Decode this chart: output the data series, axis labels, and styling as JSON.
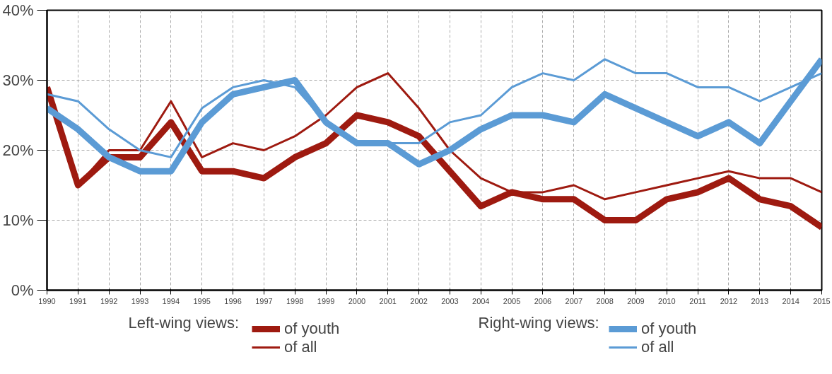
{
  "chart_data": {
    "type": "line",
    "x": [
      1990,
      1991,
      1992,
      1993,
      1994,
      1995,
      1996,
      1997,
      1998,
      1999,
      2000,
      2001,
      2002,
      2003,
      2004,
      2005,
      2006,
      2007,
      2008,
      2009,
      2010,
      2011,
      2012,
      2013,
      2014,
      2015
    ],
    "series": [
      {
        "name": "of youth",
        "color": "#9e1a10",
        "values": [
          29,
          15,
          19,
          19,
          24,
          17,
          17,
          16,
          19,
          21,
          25,
          24,
          22,
          17,
          12,
          14,
          13,
          13,
          10,
          10,
          13,
          14,
          16,
          13,
          12,
          9
        ]
      },
      {
        "name": "of all",
        "color": "#9e1a10",
        "values": [
          29,
          15,
          20,
          20,
          27,
          19,
          21,
          20,
          22,
          25,
          29,
          31,
          26,
          20,
          16,
          14,
          14,
          15,
          13,
          14,
          15,
          16,
          17,
          16,
          16,
          14
        ]
      },
      {
        "name": "of youth",
        "color": "#5b9bd5",
        "values": [
          26,
          23,
          19,
          17,
          17,
          24,
          28,
          29,
          30,
          24,
          21,
          21,
          18,
          20,
          23,
          25,
          25,
          24,
          28,
          26,
          24,
          22,
          24,
          21,
          27,
          33
        ]
      },
      {
        "name": "of all",
        "color": "#5b9bd5",
        "values": [
          28,
          27,
          23,
          20,
          19,
          26,
          29,
          30,
          29,
          24,
          21,
          21,
          21,
          24,
          25,
          29,
          31,
          30,
          33,
          31,
          31,
          29,
          29,
          27,
          29,
          31
        ]
      }
    ],
    "annotations": [
      "Left-wing views:",
      "Right-wing views:"
    ],
    "xlim": [
      1990,
      2015
    ],
    "xticks": [
      1990,
      1991,
      1992,
      1993,
      1994,
      1995,
      1996,
      1997,
      1998,
      1999,
      2000,
      2001,
      2002,
      2003,
      2004,
      2005,
      2006,
      2007,
      2008,
      2009,
      2010,
      2011,
      2012,
      2013,
      2014,
      2015
    ],
    "ylim": [
      0,
      40
    ],
    "yticks": [
      {
        "value": 0,
        "label": "0%"
      },
      {
        "value": 10,
        "label": "10%"
      },
      {
        "value": 20,
        "label": "20%"
      },
      {
        "value": 30,
        "label": "30%"
      },
      {
        "value": 40,
        "label": "40%"
      }
    ],
    "grid": true,
    "legend": "bottom",
    "line_style": "solid"
  }
}
